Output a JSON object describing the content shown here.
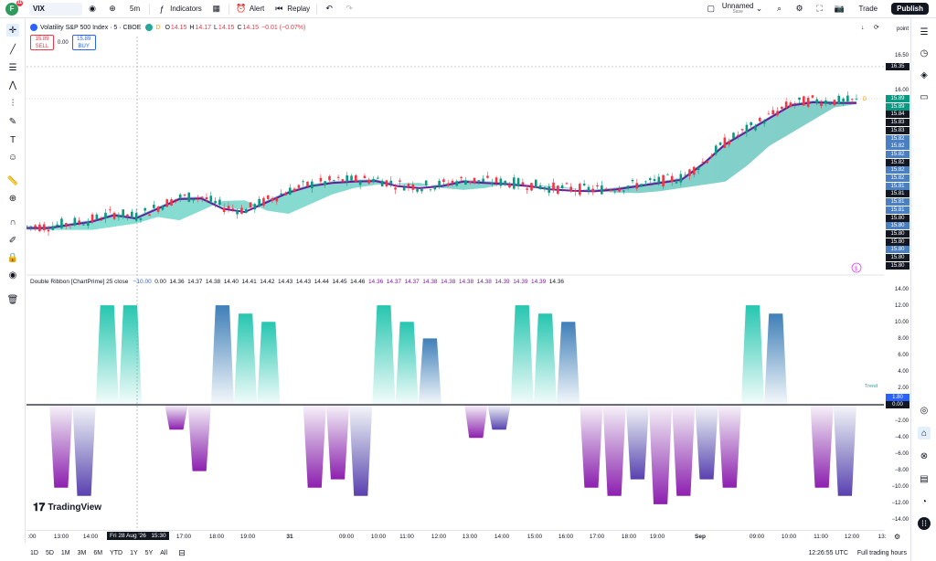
{
  "topbar": {
    "avatar_letter": "F",
    "avatar_badge": "11",
    "symbol": "VIX",
    "interval": "5m",
    "indicators_label": "Indicators",
    "alert_label": "Alert",
    "replay_label": "Replay",
    "layout_name": "Unnamed",
    "layout_sub": "Save",
    "trade_label": "Trade",
    "publish_label": "Publish"
  },
  "legend": {
    "title": "Volatility S&P 500 Index · 5 · CBOE",
    "badge": "D",
    "o_label": "O",
    "o": "14.15",
    "h_label": "H",
    "h": "14.17",
    "l_label": "L",
    "l": "14.15",
    "c_label": "C",
    "c": "14.15",
    "change": "−0.01 (−0.07%)",
    "sell_price": "15.89",
    "sell_label": "SELL",
    "spread": "0.00",
    "buy_price": "15.89",
    "buy_label": "BUY"
  },
  "indicator_legend": {
    "name": "Double Ribbon [ChartPrime] 25 close",
    "values": [
      "−10.00",
      "0.00",
      "14.36",
      "14.37",
      "14.38",
      "14.40",
      "14.41",
      "14.42",
      "14.43",
      "14.43",
      "14.44",
      "14.45",
      "14.46",
      "14.36",
      "14.37",
      "14.37",
      "14.38",
      "14.38",
      "14.38",
      "14.38",
      "14.39",
      "14.39",
      "14.39",
      "14.36"
    ]
  },
  "price_axis": {
    "unit_label": "point",
    "ticks": [
      "16.50",
      "16.00"
    ],
    "crosshair_label": "16.35",
    "labels": [
      "15.89",
      "15.89",
      "15.84",
      "15.83",
      "15.83",
      "15.82",
      "15.82",
      "15.82",
      "15.82",
      "15.82",
      "15.82",
      "15.81",
      "15.81",
      "15.81",
      "15.81",
      "15.80",
      "15.80",
      "15.80",
      "15.80",
      "15.80",
      "15.80",
      "15.80"
    ],
    "label_colors": [
      "#089981",
      "#089981",
      "#131722",
      "#131722",
      "#131722",
      "#4a7fc1",
      "#4a7fc1",
      "#4a7fc1",
      "#131722",
      "#4a7fc1",
      "#4a7fc1",
      "#4a7fc1",
      "#131722",
      "#4a7fc1",
      "#4a7fc1",
      "#131722",
      "#4a7fc1",
      "#131722",
      "#131722",
      "#4a7fc1",
      "#131722",
      "#131722"
    ],
    "lower_ticks": [
      "14.00",
      "12.00",
      "10.00",
      "8.00",
      "6.00",
      "4.00",
      "2.00",
      "0.00",
      "−2.00",
      "−4.00",
      "−6.00",
      "−8.00",
      "−10.00",
      "−12.00",
      "−14.00"
    ],
    "trend_label": "Trend",
    "trend_value": "1.80",
    "zero_value": "0.00"
  },
  "time_axis": {
    "ticks": [
      ":00",
      "13:00",
      "14:00",
      "17:00",
      "18:00",
      "19:00",
      "31",
      "09:00",
      "10:00",
      "11:00",
      "12:00",
      "13:00",
      "14:00",
      "15:00",
      "16:00",
      "17:00",
      "18:00",
      "19:00",
      "Sep",
      "09:00",
      "10:00",
      "11:00",
      "12:00",
      "13:"
    ],
    "crosshair_label": "Fri 28 Aug '26   15:30"
  },
  "bottombar": {
    "ranges": [
      "1D",
      "5D",
      "1M",
      "3M",
      "6M",
      "YTD",
      "1Y",
      "5Y",
      "All"
    ],
    "clock": "12:26:55 UTC",
    "session": "Full trading hours"
  },
  "watermark": "TradingView",
  "colors": {
    "teal": "#26c6b0",
    "purple": "#7b1fa2",
    "up": "#089981",
    "down": "#f23645"
  },
  "chart_data": {
    "type": "line",
    "title": "",
    "series": [
      {
        "values": [
          13.9,
          13.9,
          13.95,
          14.0,
          14.1,
          14.05,
          14.2,
          14.35,
          14.36,
          14.2,
          14.15,
          14.3,
          14.45,
          14.55,
          14.6,
          14.62,
          14.63,
          14.55,
          14.52,
          14.55,
          14.62,
          14.6,
          14.58,
          14.55,
          14.5,
          14.48,
          14.47,
          14.5,
          14.55,
          14.6,
          14.65,
          14.9,
          15.2,
          15.4,
          15.6,
          15.8,
          15.85,
          15.84,
          15.84
        ]
      }
    ],
    "ylim": [
      13.3,
      16.7
    ],
    "indicator": {
      "name": "Double Ribbon",
      "values": [
        0,
        -10,
        -11,
        12,
        12,
        0,
        -3,
        -8,
        12,
        11,
        10,
        0,
        -10,
        -9,
        -11,
        12,
        10,
        8,
        0,
        -4,
        -3,
        12,
        11,
        10,
        -10,
        -11,
        -9,
        -12,
        -11,
        -9,
        -10,
        12,
        11,
        0,
        -10,
        -11
      ],
      "ylim": [
        -14,
        14
      ]
    }
  }
}
